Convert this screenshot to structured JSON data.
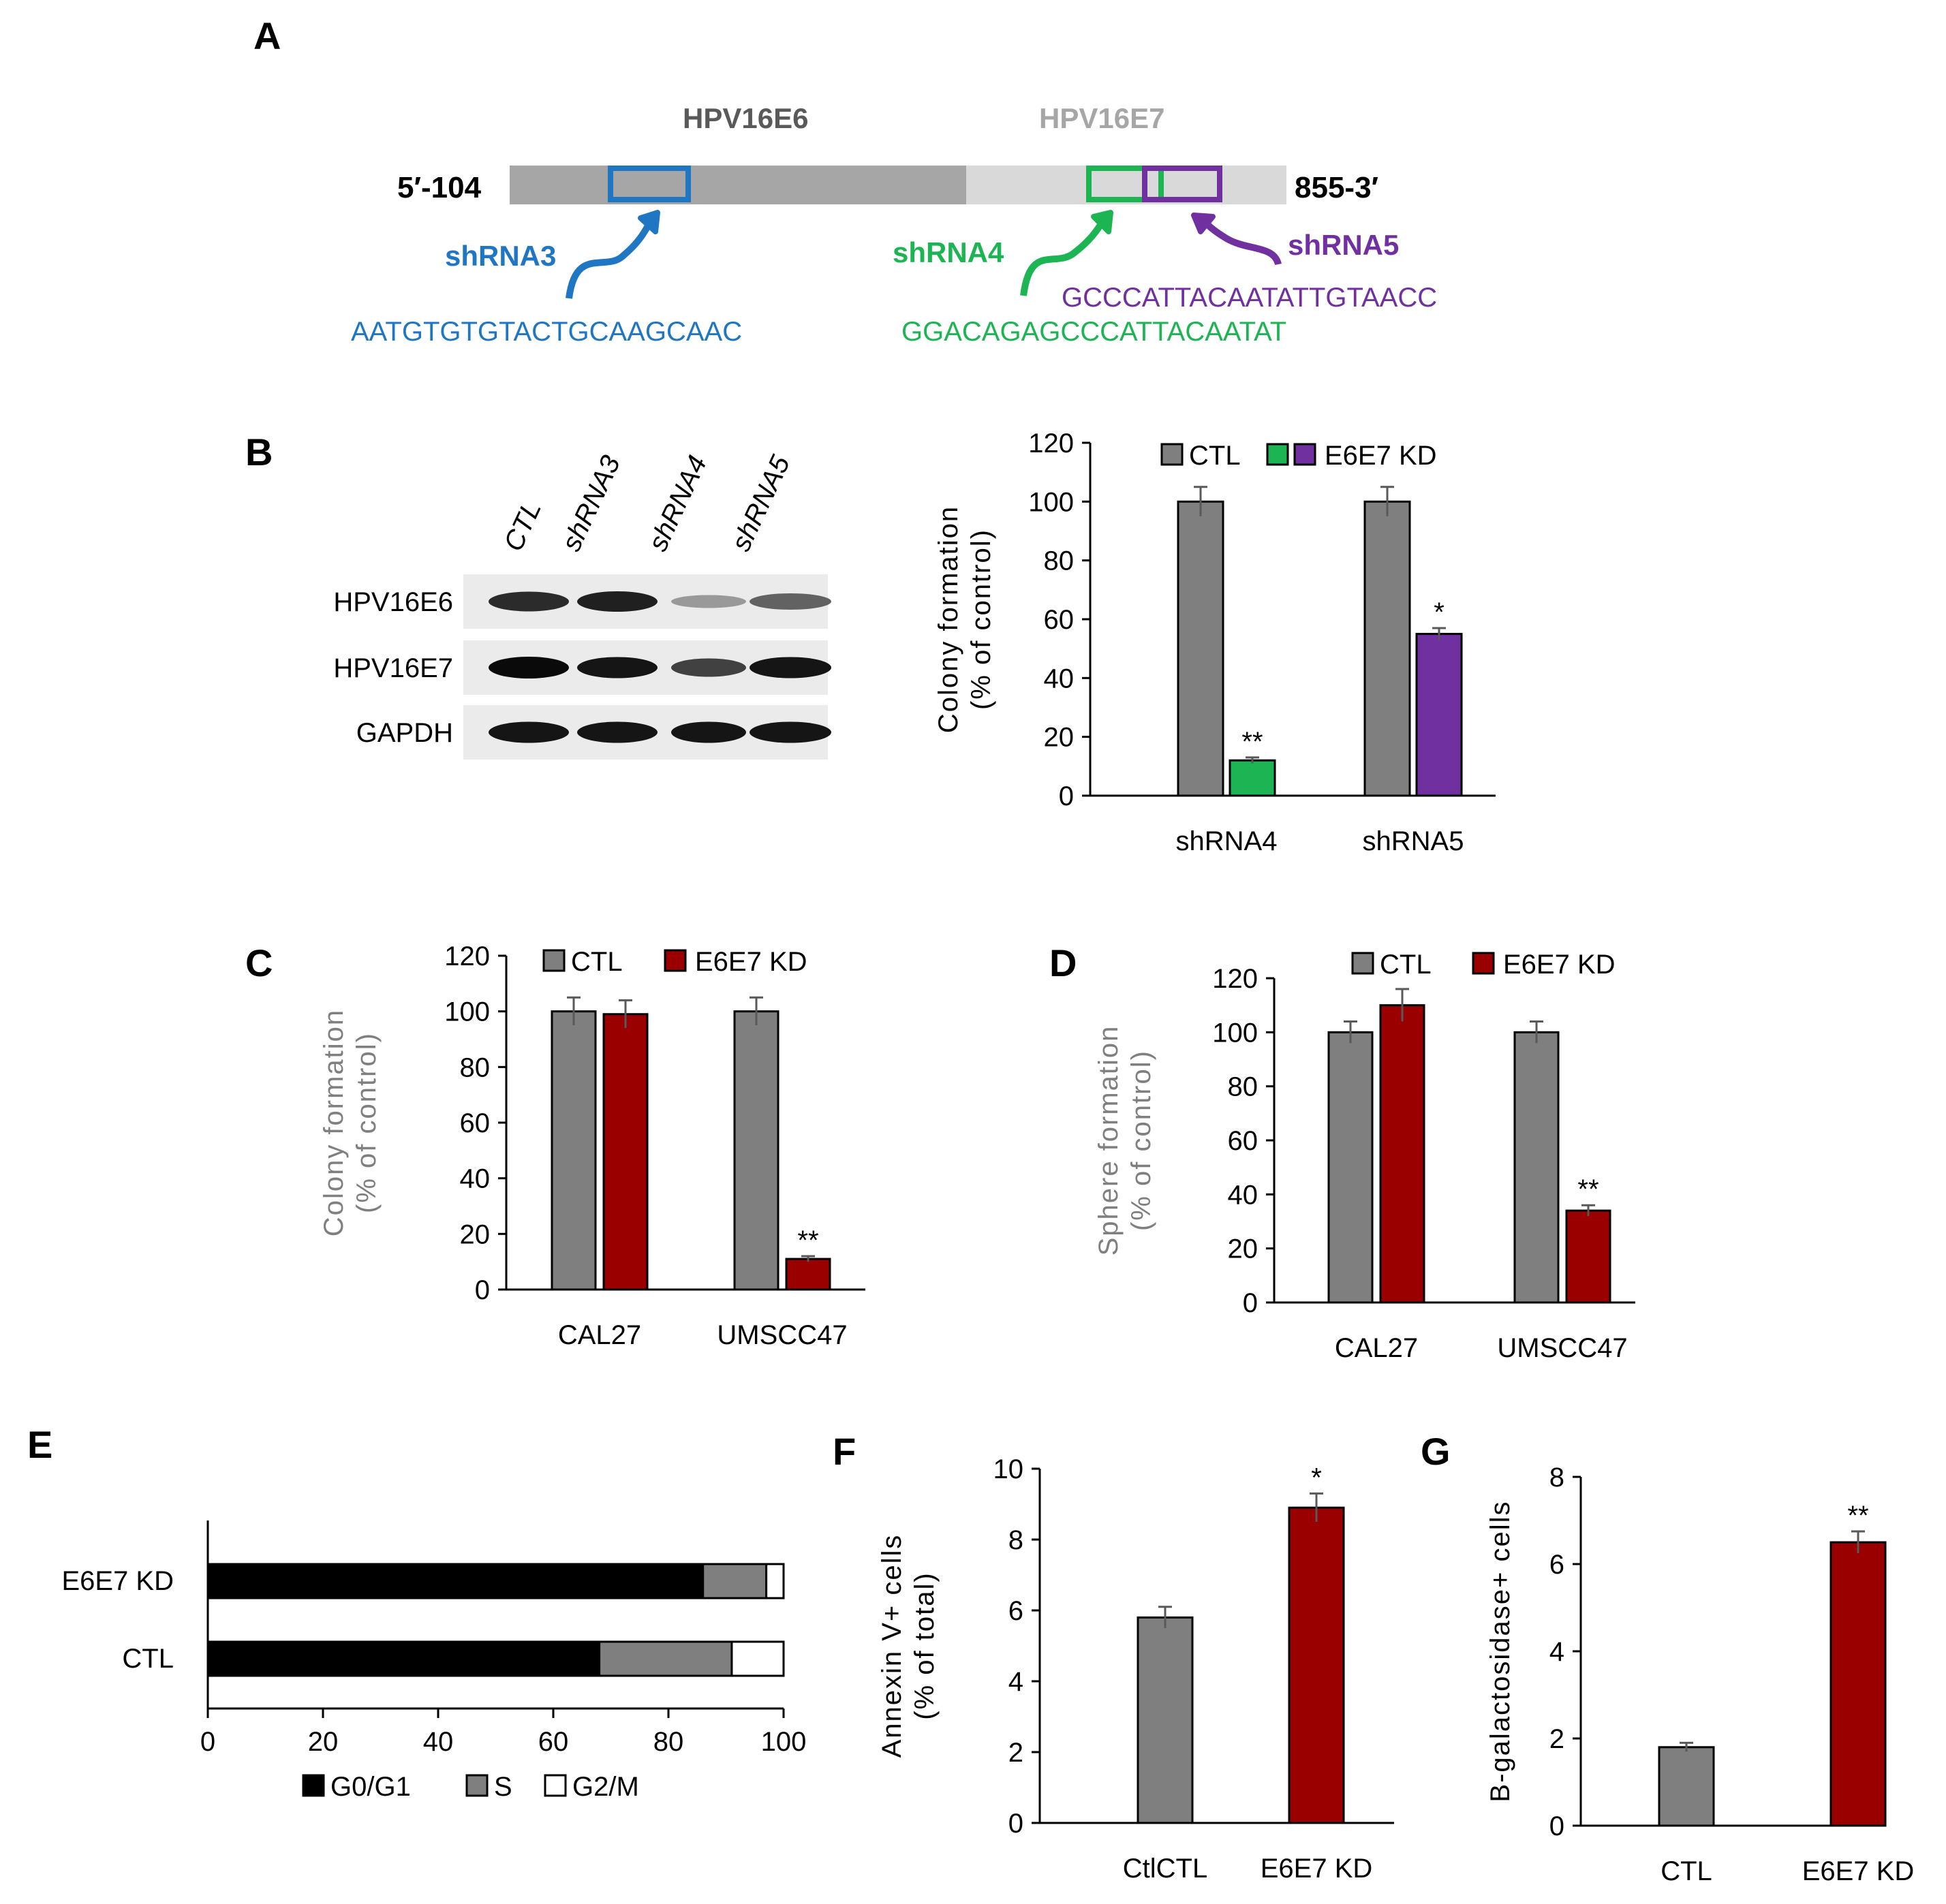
{
  "colors": {
    "ctl": "#7f7f7f",
    "kd_red": "#9b0000",
    "kd_green": "#1db454",
    "kd_purple": "#7030a0",
    "sh3": "#1f77c4",
    "sh4": "#1db454",
    "sh5": "#7030a0",
    "e6_bar": "#a6a6a6",
    "e7_bar": "#d9d9d9",
    "g0g1": "#000000",
    "s": "#7f7f7f",
    "g2m": "#ffffff"
  },
  "panelA": {
    "label": "A",
    "five_prime": "5′-104",
    "three_prime": "855-3′",
    "e6_label": "HPV16E6",
    "e7_label": "HPV16E7",
    "sh3": {
      "name": "shRNA3",
      "seq": "AATGTGTGTACTGCAAGCAAC"
    },
    "sh4": {
      "name": "shRNA4",
      "seq": "GGACAGAGCCCATTACAATAT"
    },
    "sh5": {
      "name": "shRNA5",
      "seq": "GCCCATTACAATATTGTAACC"
    }
  },
  "panelB": {
    "label": "B",
    "blot": {
      "lanes": [
        "CTL",
        "shRNA3",
        "shRNA4",
        "shRNA5"
      ],
      "rows": [
        {
          "name": "HPV16E6",
          "intensity": [
            0.85,
            0.9,
            0.35,
            0.6
          ]
        },
        {
          "name": "HPV16E7",
          "intensity": [
            1.0,
            0.95,
            0.75,
            0.95
          ]
        },
        {
          "name": "GAPDH",
          "intensity": [
            0.95,
            0.95,
            0.95,
            0.95
          ]
        }
      ]
    }
  },
  "chart_data": [
    {
      "panel": "B",
      "type": "bar",
      "categories": [
        "shRNA4",
        "shRNA5"
      ],
      "series": [
        {
          "name": "CTL",
          "values": [
            100,
            100
          ],
          "errors": [
            5,
            5
          ]
        },
        {
          "name": "E6E7 KD",
          "values": [
            12,
            55
          ],
          "errors": [
            1,
            2
          ]
        }
      ],
      "significance": [
        "**",
        "*"
      ],
      "ylabel": [
        "Colony formation",
        "(% of control)"
      ],
      "ylim": [
        0,
        120
      ],
      "yticks": [
        0,
        20,
        40,
        60,
        80,
        100,
        120
      ],
      "legend": [
        "CTL",
        "E6E7 KD"
      ]
    },
    {
      "panel": "C",
      "type": "bar",
      "categories": [
        "CAL27",
        "UMSCC47"
      ],
      "series": [
        {
          "name": "CTL",
          "values": [
            100,
            100
          ],
          "errors": [
            5,
            5
          ]
        },
        {
          "name": "E6E7 KD",
          "values": [
            99,
            11
          ],
          "errors": [
            5,
            1
          ]
        }
      ],
      "significance": [
        "",
        "**"
      ],
      "ylabel": [
        "Colony formation",
        "(% of control)"
      ],
      "ylim": [
        0,
        120
      ],
      "yticks": [
        0,
        20,
        40,
        60,
        80,
        100,
        120
      ],
      "legend": [
        "CTL",
        "E6E7 KD"
      ]
    },
    {
      "panel": "D",
      "type": "bar",
      "categories": [
        "CAL27",
        "UMSCC47"
      ],
      "series": [
        {
          "name": "CTL",
          "values": [
            100,
            100
          ],
          "errors": [
            4,
            4
          ]
        },
        {
          "name": "E6E7 KD",
          "values": [
            110,
            34
          ],
          "errors": [
            6,
            2
          ]
        }
      ],
      "significance": [
        "",
        "**"
      ],
      "ylabel": [
        "Sphere formation",
        "(% of control)"
      ],
      "ylim": [
        0,
        120
      ],
      "yticks": [
        0,
        20,
        40,
        60,
        80,
        100,
        120
      ],
      "legend": [
        "CTL",
        "E6E7 KD"
      ]
    },
    {
      "panel": "E",
      "type": "bar",
      "orientation": "horizontal-stacked",
      "categories": [
        "E6E7 KD",
        "CTL"
      ],
      "series": [
        {
          "name": "G0/G1",
          "values": [
            86,
            68
          ]
        },
        {
          "name": "S",
          "values": [
            11,
            23
          ]
        },
        {
          "name": "G2/M",
          "values": [
            3,
            9
          ]
        }
      ],
      "xlim": [
        0,
        100
      ],
      "xticks": [
        0,
        20,
        40,
        60,
        80,
        100
      ],
      "legend": [
        "G0/G1",
        "S",
        "G2/M"
      ]
    },
    {
      "panel": "F",
      "type": "bar",
      "categories": [
        "CtlCTL",
        "E6E7 KD"
      ],
      "values": [
        5.8,
        8.9
      ],
      "errors": [
        0.3,
        0.4
      ],
      "significance": [
        "",
        "*"
      ],
      "ylabel": [
        "Annexin V+ cells",
        "(% of total)"
      ],
      "ylim": [
        0,
        10
      ],
      "yticks": [
        0,
        2,
        4,
        6,
        8,
        10
      ]
    },
    {
      "panel": "G",
      "type": "bar",
      "categories": [
        "CTL",
        "E6E7 KD"
      ],
      "values": [
        1.8,
        6.5
      ],
      "errors": [
        0.1,
        0.25
      ],
      "significance": [
        "",
        "**"
      ],
      "ylabel": [
        "B-galactosidase+ cells"
      ],
      "ylim": [
        0,
        8
      ],
      "yticks": [
        0,
        2,
        4,
        6,
        8
      ]
    }
  ],
  "panel_labels": {
    "C": "C",
    "D": "D",
    "E": "E",
    "F": "F",
    "G": "G"
  }
}
